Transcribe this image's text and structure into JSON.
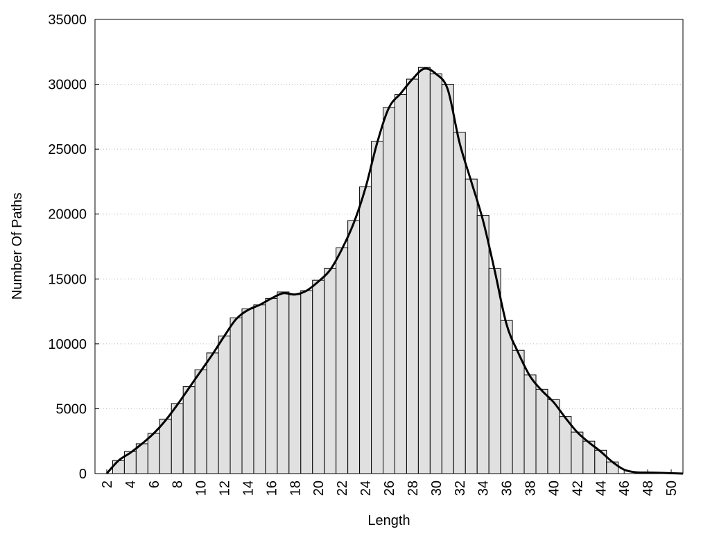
{
  "chart_data": {
    "type": "histogram",
    "x_label": "Length",
    "y_label": "Number Of Paths",
    "xlim": [
      1,
      51
    ],
    "ylim": [
      0,
      35000
    ],
    "xticks": [
      2,
      4,
      6,
      8,
      10,
      12,
      14,
      16,
      18,
      20,
      22,
      24,
      26,
      28,
      30,
      32,
      34,
      36,
      38,
      40,
      42,
      44,
      46,
      48,
      50
    ],
    "yticks": [
      0,
      5000,
      10000,
      15000,
      20000,
      25000,
      30000,
      35000
    ],
    "grid": true,
    "series": [
      {
        "type": "bar",
        "color": "#e0e0e0",
        "x": [
          3,
          4,
          5,
          6,
          7,
          8,
          9,
          10,
          11,
          12,
          13,
          14,
          15,
          16,
          17,
          18,
          19,
          20,
          21,
          22,
          23,
          24,
          25,
          26,
          27,
          28,
          29,
          30,
          31,
          32,
          33,
          34,
          35,
          36,
          37,
          38,
          39,
          40,
          41,
          42,
          43,
          44,
          45
        ],
        "values": [
          1000,
          1700,
          2300,
          3100,
          4200,
          5400,
          6700,
          8000,
          9300,
          10600,
          12000,
          12700,
          13000,
          13500,
          14000,
          13800,
          14100,
          14900,
          15800,
          17400,
          19500,
          22100,
          25600,
          28200,
          29200,
          30400,
          31300,
          30800,
          30000,
          26300,
          22700,
          19900,
          15800,
          11800,
          9500,
          7600,
          6500,
          5700,
          4400,
          3200,
          2500,
          1800,
          900
        ]
      },
      {
        "type": "line",
        "color": "#000000",
        "x": [
          2,
          3,
          4,
          5,
          6,
          7,
          8,
          9,
          10,
          11,
          12,
          13,
          14,
          15,
          16,
          17,
          18,
          19,
          20,
          21,
          22,
          23,
          24,
          25,
          26,
          27,
          28,
          29,
          30,
          31,
          32,
          33,
          34,
          35,
          36,
          37,
          38,
          39,
          40,
          41,
          42,
          43,
          44,
          45,
          46,
          47,
          48,
          49,
          50,
          51
        ],
        "values": [
          0,
          1000,
          1600,
          2300,
          3100,
          4100,
          5300,
          6600,
          7900,
          9200,
          10600,
          11900,
          12600,
          13000,
          13500,
          13900,
          13800,
          14100,
          14800,
          15700,
          17300,
          19300,
          22000,
          25500,
          28200,
          29300,
          30400,
          31200,
          30800,
          29600,
          25500,
          22500,
          19500,
          15600,
          11500,
          9300,
          7500,
          6400,
          5500,
          4300,
          3200,
          2400,
          1700,
          900,
          300,
          100,
          80,
          60,
          30,
          0
        ]
      }
    ]
  }
}
